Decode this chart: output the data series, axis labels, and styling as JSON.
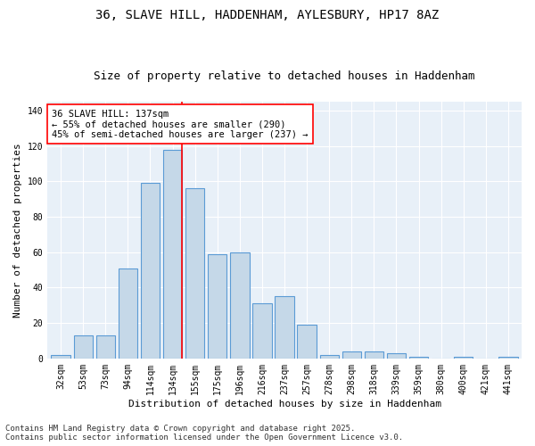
{
  "title1": "36, SLAVE HILL, HADDENHAM, AYLESBURY, HP17 8AZ",
  "title2": "Size of property relative to detached houses in Haddenham",
  "xlabel": "Distribution of detached houses by size in Haddenham",
  "ylabel": "Number of detached properties",
  "categories": [
    "32sqm",
    "53sqm",
    "73sqm",
    "94sqm",
    "114sqm",
    "134sqm",
    "155sqm",
    "175sqm",
    "196sqm",
    "216sqm",
    "237sqm",
    "257sqm",
    "278sqm",
    "298sqm",
    "318sqm",
    "339sqm",
    "359sqm",
    "380sqm",
    "400sqm",
    "421sqm",
    "441sqm"
  ],
  "values": [
    2,
    13,
    13,
    51,
    99,
    118,
    96,
    59,
    60,
    31,
    35,
    19,
    2,
    4,
    4,
    3,
    1,
    0,
    1,
    0,
    1
  ],
  "bar_color": "#c5d8e8",
  "bar_edge_color": "#5b9bd5",
  "vline_color": "red",
  "annotation_text": "36 SLAVE HILL: 137sqm\n← 55% of detached houses are smaller (290)\n45% of semi-detached houses are larger (237) →",
  "annotation_box_color": "white",
  "annotation_box_edge": "red",
  "ylim": [
    0,
    145
  ],
  "yticks": [
    0,
    20,
    40,
    60,
    80,
    100,
    120,
    140
  ],
  "background_color": "#e8f0f8",
  "footer_text": "Contains HM Land Registry data © Crown copyright and database right 2025.\nContains public sector information licensed under the Open Government Licence v3.0.",
  "title1_fontsize": 10,
  "title2_fontsize": 9,
  "xlabel_fontsize": 8,
  "ylabel_fontsize": 8,
  "annotation_fontsize": 7.5,
  "footer_fontsize": 6.5,
  "tick_fontsize": 7
}
